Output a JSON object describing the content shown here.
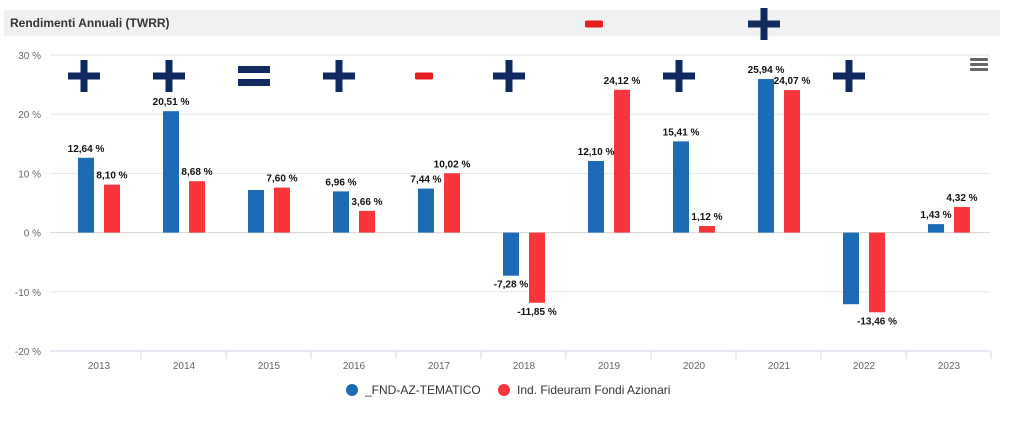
{
  "header": {
    "title": "Rendimenti Annuali (TWRR)"
  },
  "chart_data": {
    "type": "bar",
    "categories": [
      "2013",
      "2014",
      "2015",
      "2016",
      "2017",
      "2018",
      "2019",
      "2020",
      "2021",
      "2022",
      "2023"
    ],
    "series": [
      {
        "name": "_FND-AZ-TEMATICO",
        "color": "#1c6bb5",
        "values": [
          12.64,
          20.51,
          7.2,
          6.96,
          7.44,
          -7.28,
          12.1,
          15.41,
          25.94,
          -12.1,
          1.43
        ],
        "labels": [
          "12,64 %",
          "20,51 %",
          "",
          "6,96 %",
          "7,44 %",
          "-7,28 %",
          "12,10 %",
          "15,41 %",
          "25,94 %",
          "",
          "1,43 %"
        ]
      },
      {
        "name": "Ind. Fideuram Fondi Azionari",
        "color": "#f7353a",
        "values": [
          8.1,
          8.68,
          7.6,
          3.66,
          10.02,
          -11.85,
          24.12,
          1.12,
          24.07,
          -13.46,
          4.32
        ],
        "labels": [
          "8,10 %",
          "8,68 %",
          "7,60 %",
          "3,66 %",
          "10,02 %",
          "-11,85 %",
          "24,12 %",
          "1,12 %",
          "24,07 %",
          "-13,46 %",
          "4,32 %"
        ]
      }
    ],
    "yticks": [
      30,
      20,
      10,
      0,
      -10,
      -20
    ],
    "ytick_labels": [
      "30 %",
      "20 %",
      "10 %",
      "0 %",
      "-10 %",
      "-20 %"
    ],
    "ylim": [
      -20,
      30
    ],
    "grid": true,
    "legend_position": "bottom",
    "annotations": [
      {
        "category": "2013",
        "symbol": "+",
        "color": "#0e2a5e"
      },
      {
        "category": "2014",
        "symbol": "+",
        "color": "#0e2a5e"
      },
      {
        "category": "2015",
        "symbol": "=",
        "color": "#0e2a5e"
      },
      {
        "category": "2016",
        "symbol": "+",
        "color": "#0e2a5e"
      },
      {
        "category": "2017",
        "symbol": "-",
        "color": "#e81f1f"
      },
      {
        "category": "2018",
        "symbol": "+",
        "color": "#0e2a5e"
      },
      {
        "category": "2019",
        "symbol": "-",
        "color": "#e81f1f",
        "row": "top"
      },
      {
        "category": "2020",
        "symbol": "+",
        "color": "#0e2a5e"
      },
      {
        "category": "2021",
        "symbol": "+",
        "color": "#0e2a5e",
        "row": "top"
      },
      {
        "category": "2022",
        "symbol": "+",
        "color": "#0e2a5e"
      }
    ]
  },
  "icons": {
    "menu": "hamburger-menu-icon"
  }
}
